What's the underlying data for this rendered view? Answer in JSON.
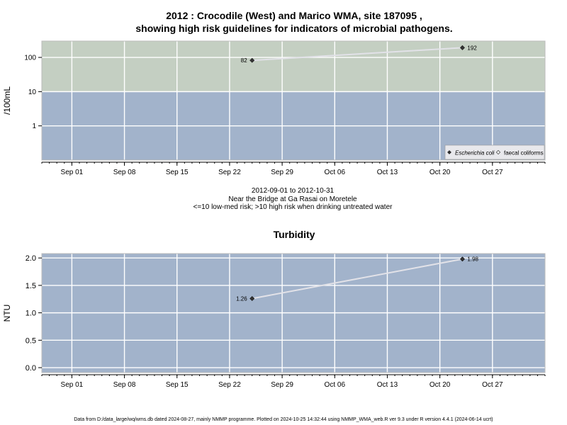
{
  "title_line1": "2012 : Crocodile (West) and Marico WMA, site 187095 ,",
  "title_line2": "showing high risk guidelines for indicators of microbial pathogens.",
  "subtitle_lines": [
    "2012-09-01 to 2012-10-31",
    "Near the Bridge at Ga Rasai on Moretele",
    "<=10 low-med risk; >10 high risk when drinking untreated water"
  ],
  "footer": "Data from D:/data_large/wq/wms.db dated 2024-08-27, mainly NMMP programme. Plotted on 2024-10-25 14:32:44 using NMMP_WMA_web.R ver 9.3 under R version 4.4.1 (2024-06-14 ucrt)",
  "colors": {
    "high_risk_band": "#c4cfc2",
    "low_risk_band": "#a2b3cb",
    "panel_bg": "#a2b3cb",
    "grid": "#ffffff",
    "line": "#e2e2e8",
    "point": "#333333"
  },
  "chart_data": [
    {
      "type": "line",
      "title": "",
      "xlabel": "",
      "ylabel": "/100mL",
      "y_scale": "log10",
      "ylim": [
        0.1,
        300
      ],
      "xlim": [
        "2012-08-28",
        "2012-11-03"
      ],
      "y_ticks": [
        1,
        10,
        100
      ],
      "y_tick_labels": [
        "1",
        "10",
        "100"
      ],
      "x_ticks": [
        "2012-09-01",
        "2012-09-08",
        "2012-09-15",
        "2012-09-22",
        "2012-09-29",
        "2012-10-06",
        "2012-10-13",
        "2012-10-20",
        "2012-10-27"
      ],
      "x_tick_labels": [
        "Sep 01",
        "Sep 08",
        "Sep 15",
        "Sep 22",
        "Sep 29",
        "Oct 06",
        "Oct 13",
        "Oct 20",
        "Oct 27"
      ],
      "threshold": 10,
      "grid": true,
      "legend_position": "bottom-right",
      "series": [
        {
          "name": "Escherichia coli",
          "marker": "filled-diamond",
          "x": [
            "2012-09-25",
            "2012-10-23"
          ],
          "values": [
            82,
            192
          ],
          "labels": [
            "82",
            "192"
          ]
        },
        {
          "name": "faecal coliforms",
          "marker": "open-diamond",
          "x": [],
          "values": [],
          "labels": []
        }
      ]
    },
    {
      "type": "line",
      "title": "Turbidity",
      "xlabel": "",
      "ylabel": "NTU",
      "ylim": [
        -0.09,
        2.08
      ],
      "xlim": [
        "2012-08-28",
        "2012-11-03"
      ],
      "y_ticks": [
        0,
        0.5,
        1,
        1.5,
        2
      ],
      "y_tick_labels": [
        "0.0",
        "0.5",
        "1.0",
        "1.5",
        "2.0"
      ],
      "x_ticks": [
        "2012-09-01",
        "2012-09-08",
        "2012-09-15",
        "2012-09-22",
        "2012-09-29",
        "2012-10-06",
        "2012-10-13",
        "2012-10-20",
        "2012-10-27"
      ],
      "x_tick_labels": [
        "Sep 01",
        "Sep 08",
        "Sep 15",
        "Sep 22",
        "Sep 29",
        "Oct 06",
        "Oct 13",
        "Oct 20",
        "Oct 27"
      ],
      "grid": true,
      "series": [
        {
          "name": "",
          "marker": "filled-diamond",
          "x": [
            "2012-09-25",
            "2012-10-23"
          ],
          "values": [
            1.26,
            1.98
          ],
          "labels": [
            "1.26",
            "1.98"
          ]
        }
      ]
    }
  ]
}
